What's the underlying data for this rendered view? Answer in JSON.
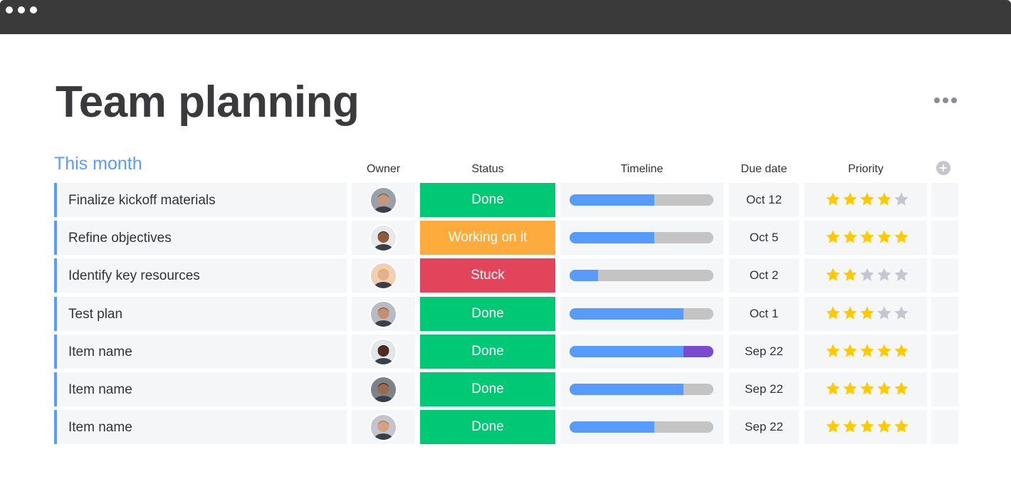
{
  "window": {
    "controls": [
      "dot",
      "dot",
      "dot"
    ]
  },
  "board": {
    "title": "Team planning",
    "menu_icon": "more-horizontal-icon"
  },
  "group": {
    "title": "This month",
    "accent_color": "#579bfc",
    "columns": [
      "Owner",
      "Status",
      "Timeline",
      "Due date",
      "Priority"
    ],
    "add_column_icon": "plus-circle-icon"
  },
  "status_colors": {
    "Done": "#00c875",
    "Working on it": "#fdab3d",
    "Stuck": "#e2445c"
  },
  "timeline_colors": {
    "fill": "#579bfc",
    "extra": "#784bd1",
    "track": "#c4c4c4"
  },
  "star_colors": {
    "on": "#ffcb00",
    "off": "#c5c7d0"
  },
  "items": [
    {
      "name": "Finalize kickoff materials",
      "owner": "avatar-1",
      "status": "Done",
      "timeline_progress": 0.59,
      "timeline_extra": 0,
      "due": "Oct 12",
      "priority": 4,
      "priority_max": 5
    },
    {
      "name": "Refine objectives",
      "owner": "avatar-2",
      "status": "Working on it",
      "timeline_progress": 0.59,
      "timeline_extra": 0,
      "due": "Oct 5",
      "priority": 5,
      "priority_max": 5
    },
    {
      "name": "Identify key resources",
      "owner": "avatar-3",
      "status": "Stuck",
      "timeline_progress": 0.2,
      "timeline_extra": 0,
      "due": "Oct 2",
      "priority": 2,
      "priority_max": 5
    },
    {
      "name": "Test plan",
      "owner": "avatar-4",
      "status": "Done",
      "timeline_progress": 0.79,
      "timeline_extra": 0,
      "due": "Oct 1",
      "priority": 3,
      "priority_max": 5
    },
    {
      "name": "Item name",
      "owner": "avatar-5",
      "status": "Done",
      "timeline_progress": 0.79,
      "timeline_extra": 0.21,
      "due": "Sep 22",
      "priority": 5,
      "priority_max": 5
    },
    {
      "name": "Item name",
      "owner": "avatar-6",
      "status": "Done",
      "timeline_progress": 0.79,
      "timeline_extra": 0,
      "due": "Sep 22",
      "priority": 5,
      "priority_max": 5
    },
    {
      "name": "Item name",
      "owner": "avatar-7",
      "status": "Done",
      "timeline_progress": 0.59,
      "timeline_extra": 0,
      "due": "Sep 22",
      "priority": 5,
      "priority_max": 5
    }
  ]
}
